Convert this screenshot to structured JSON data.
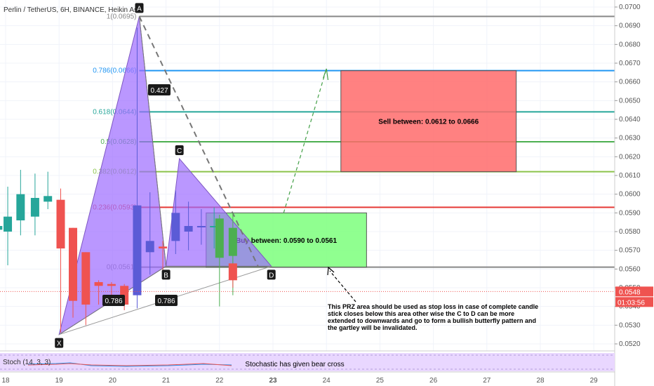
{
  "chart_data": {
    "type": "candlestick",
    "title": "Perlin / TetherUS, 6H, BINANCE, Heikin As",
    "y_axis": {
      "min": 0.0515,
      "max": 0.0703,
      "ticks": [
        "0.0520",
        "0.0530",
        "0.0540",
        "0.0550",
        "0.0560",
        "0.0570",
        "0.0580",
        "0.0590",
        "0.0600",
        "0.0610",
        "0.0620",
        "0.0630",
        "0.0640",
        "0.0650",
        "0.0660",
        "0.0670",
        "0.0680",
        "0.0690",
        "0.0700"
      ],
      "last_price_label": "0.0548",
      "last_price": 0.0548,
      "countdown_label": "01:03:56"
    },
    "x_axis": {
      "min": 18,
      "max": 29.3,
      "ticks": [
        {
          "x": 18,
          "label": "18",
          "bold": false
        },
        {
          "x": 19,
          "label": "19",
          "bold": false
        },
        {
          "x": 20,
          "label": "20",
          "bold": false
        },
        {
          "x": 21,
          "label": "21",
          "bold": false
        },
        {
          "x": 22,
          "label": "22",
          "bold": false
        },
        {
          "x": 23,
          "label": "23",
          "bold": true
        },
        {
          "x": 24,
          "label": "24",
          "bold": false
        },
        {
          "x": 25,
          "label": "25",
          "bold": false
        },
        {
          "x": 26,
          "label": "26",
          "bold": false
        },
        {
          "x": 27,
          "label": "27",
          "bold": false
        },
        {
          "x": 28,
          "label": "28",
          "bold": false
        },
        {
          "x": 29,
          "label": "29",
          "bold": false
        }
      ]
    },
    "candles": [
      {
        "x": 17.86,
        "o": 0.0581,
        "c": 0.0583,
        "h": 0.0586,
        "l": 0.0567,
        "color": "#26a69a"
      },
      {
        "x": 18.04,
        "o": 0.058,
        "c": 0.0588,
        "h": 0.0604,
        "l": 0.0562,
        "color": "#26a69a"
      },
      {
        "x": 18.28,
        "o": 0.0586,
        "c": 0.06,
        "h": 0.0613,
        "l": 0.0578,
        "color": "#26a69a"
      },
      {
        "x": 18.55,
        "o": 0.0588,
        "c": 0.0598,
        "h": 0.0611,
        "l": 0.0578,
        "color": "#26a69a"
      },
      {
        "x": 18.79,
        "o": 0.0596,
        "c": 0.0599,
        "h": 0.0612,
        "l": 0.0592,
        "color": "#26a69a"
      },
      {
        "x": 19.03,
        "o": 0.0597,
        "c": 0.0571,
        "h": 0.0603,
        "l": 0.0526,
        "color": "#ef5350"
      },
      {
        "x": 19.26,
        "o": 0.0582,
        "c": 0.0543,
        "h": 0.0582,
        "l": 0.0534,
        "color": "#ef5350"
      },
      {
        "x": 19.5,
        "o": 0.0569,
        "c": 0.0541,
        "h": 0.0569,
        "l": 0.053,
        "color": "#ef5350"
      },
      {
        "x": 19.74,
        "o": 0.0553,
        "c": 0.0551,
        "h": 0.0554,
        "l": 0.0541,
        "color": "#ef5350"
      },
      {
        "x": 19.98,
        "o": 0.0552,
        "c": 0.0551,
        "h": 0.0553,
        "l": 0.0545,
        "color": "#ef5350"
      },
      {
        "x": 20.22,
        "o": 0.0551,
        "c": 0.0541,
        "h": 0.0552,
        "l": 0.0538,
        "color": "#ef5350"
      },
      {
        "x": 20.46,
        "o": 0.0546,
        "c": 0.0594,
        "h": 0.0689,
        "l": 0.0539,
        "color": "#5b5bd6"
      },
      {
        "x": 20.7,
        "o": 0.0569,
        "c": 0.0575,
        "h": 0.0601,
        "l": 0.0557,
        "color": "#5b5bd6"
      },
      {
        "x": 20.94,
        "o": 0.0572,
        "c": 0.0571,
        "h": 0.0575,
        "l": 0.0559,
        "color": "#ef5350"
      },
      {
        "x": 21.18,
        "o": 0.0575,
        "c": 0.059,
        "h": 0.0602,
        "l": 0.0568,
        "color": "#5b5bd6"
      },
      {
        "x": 21.42,
        "o": 0.058,
        "c": 0.0583,
        "h": 0.0596,
        "l": 0.057,
        "color": "#5b5bd6"
      },
      {
        "x": 21.66,
        "o": 0.0583,
        "c": 0.0583,
        "h": 0.0592,
        "l": 0.0573,
        "color": "#5b5bd6"
      },
      {
        "x": 21.9,
        "o": 0.0583,
        "c": 0.0583,
        "h": 0.0593,
        "l": 0.0571,
        "color": "#26a69a"
      },
      {
        "x": 22.0,
        "o": 0.0587,
        "c": 0.0566,
        "h": 0.0589,
        "l": 0.054,
        "color": "#4caf50"
      },
      {
        "x": 22.25,
        "o": 0.0567,
        "c": 0.0582,
        "h": 0.059,
        "l": 0.0546,
        "color": "#4caf50"
      },
      {
        "x": 22.25,
        "o": 0.0563,
        "c": 0.0554,
        "h": 0.0563,
        "l": 0.055,
        "color": "#ef5350"
      }
    ],
    "harmonic_points": {
      "X": {
        "x": 19.0,
        "y": 0.0525
      },
      "A": {
        "x": 20.5,
        "y": 0.0695
      },
      "B": {
        "x": 21.0,
        "y": 0.05615
      },
      "C": {
        "x": 21.25,
        "y": 0.0619
      },
      "D": {
        "x": 22.97,
        "y": 0.05615
      },
      "labels": [
        "X",
        "A",
        "B",
        "C",
        "D"
      ],
      "ratios": [
        "0.427",
        "0.786",
        "0.786"
      ]
    },
    "fib_levels": [
      {
        "label": "1(0.0695)",
        "value": 0.0695,
        "color": "#888888"
      },
      {
        "label": "0.786(0.0666)",
        "value": 0.0666,
        "color": "#2196f3"
      },
      {
        "label": "0.618(0.0644)",
        "value": 0.0644,
        "color": "#26a69a"
      },
      {
        "label": "0.5(0.0628)",
        "value": 0.0628,
        "color": "#4caf50"
      },
      {
        "label": "0.382(0.0612)",
        "value": 0.0612,
        "color": "#8bc34a"
      },
      {
        "label": "0.236(0.0593)",
        "value": 0.0593,
        "color": "#e53935"
      },
      {
        "label": "0(0.0561)",
        "value": 0.0561,
        "color": "#888888"
      }
    ],
    "zones": [
      {
        "label": "Sell between: 0.0612 to 0.0666",
        "x0": 24.27,
        "x1": 27.55,
        "y0": 0.0612,
        "y1": 0.0666,
        "color": "#ff6b6b"
      },
      {
        "label": "Buy between: 0.0590 to 0.0561",
        "x0": 21.75,
        "x1": 24.75,
        "y0": 0.0561,
        "y1": 0.059,
        "color": "#7cff7c"
      }
    ],
    "annotation": "This PRZ area should be used as stop loss in case of complete candle stick closes below this area other wise the C to D can be more extended to downwards and go to form a bullish butterfly pattern and the gartley will be invalidated.",
    "annotation_lines": [
      "This PRZ area should be used as stop loss in case of complete candle",
      "stick closes below this area other wise the C to D can be more",
      "extended to downwards and go to form a bullish butterfly pattern and",
      "the gartley will be invalidated."
    ],
    "indicator": {
      "label": "Stoch (14, 3, 3)",
      "note": "Stochastic has given bear cross"
    }
  }
}
